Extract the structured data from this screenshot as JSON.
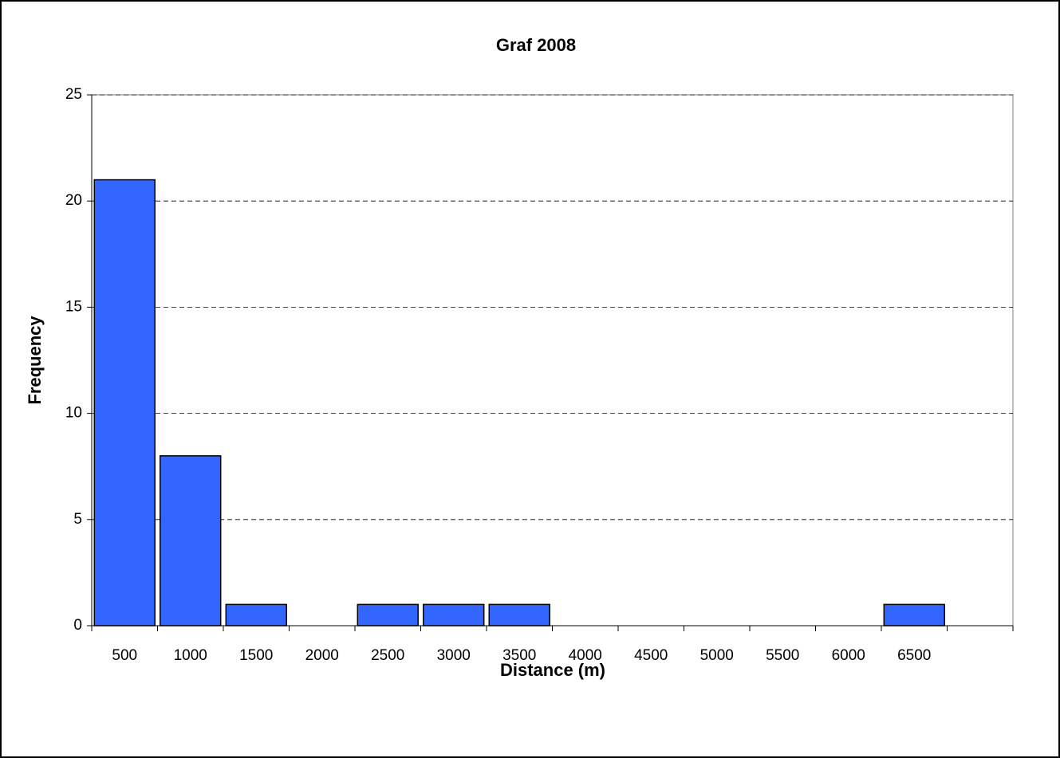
{
  "chart_data": {
    "type": "bar",
    "title": "Graf 2008",
    "x_label": "Distance (m)",
    "y_label": "Frequency",
    "categories": [
      "500",
      "1000",
      "1500",
      "2000",
      "2500",
      "3000",
      "3500",
      "4000",
      "4500",
      "5000",
      "5500",
      "6000",
      "6500",
      null
    ],
    "values": [
      21,
      8,
      1,
      0,
      1,
      1,
      1,
      0,
      0,
      0,
      0,
      0,
      1,
      0
    ],
    "color": "#3366ff",
    "ylim": [
      0,
      25
    ],
    "yticks": [
      0,
      5,
      10,
      15,
      20,
      25
    ],
    "grid": true
  }
}
